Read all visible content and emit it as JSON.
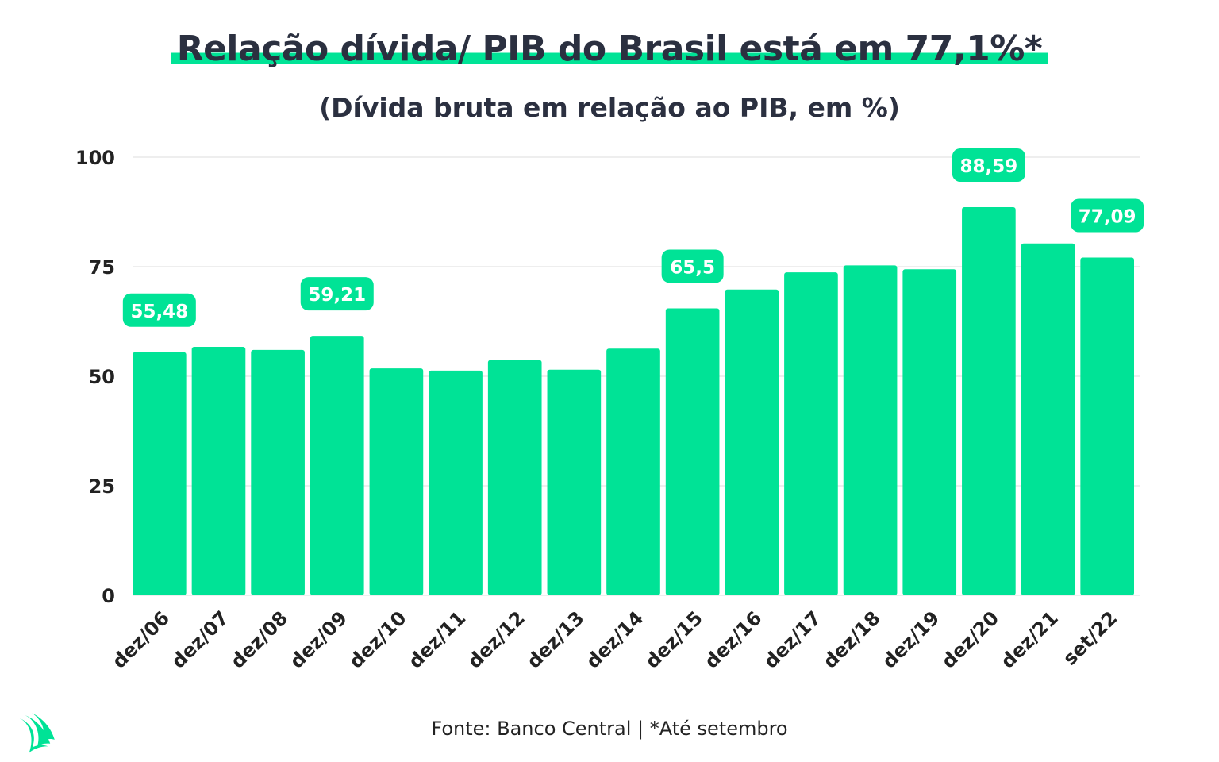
{
  "title": "Relação dívida/ PIB do Brasil está em 77,1%*",
  "subtitle": "(Dívida bruta em relação ao PIB, em %)",
  "source": "Fonte: Banco Central | *Até setembro",
  "logo_icon": "green-sail-leaf-logo",
  "colors": {
    "bar": "#00e396",
    "grid": "#dddddd",
    "text": "#2b3040"
  },
  "chart_data": {
    "type": "bar",
    "categories": [
      "dez/06",
      "dez/07",
      "dez/08",
      "dez/09",
      "dez/10",
      "dez/11",
      "dez/12",
      "dez/13",
      "dez/14",
      "dez/15",
      "dez/16",
      "dez/17",
      "dez/18",
      "dez/19",
      "dez/20",
      "dez/21",
      "set/22"
    ],
    "values": [
      55.48,
      56.7,
      56.0,
      59.21,
      51.8,
      51.3,
      53.7,
      51.5,
      56.3,
      65.5,
      69.8,
      73.7,
      75.3,
      74.4,
      88.59,
      80.3,
      77.09
    ],
    "data_labels": {
      "0": "55,48",
      "3": "59,21",
      "9": "65,5",
      "14": "88,59",
      "16": "77,09"
    },
    "yticks": [
      "0",
      "25",
      "50",
      "75",
      "100"
    ],
    "ylim": [
      0,
      100
    ],
    "grid": true,
    "legend": "none"
  }
}
